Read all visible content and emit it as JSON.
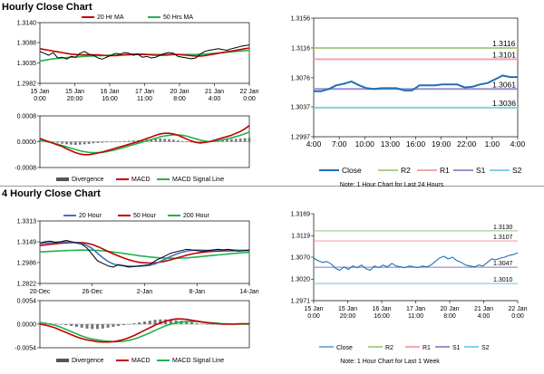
{
  "sections": {
    "hourly_title": "Hourly Close Chart",
    "four_hourly_title": "4 Hourly Close Chart"
  },
  "colors": {
    "close": "#000000",
    "ma_red": "#c00000",
    "ma_green": "#22b14c",
    "ma_blue": "#4472c4",
    "macd_black": "#1f1f1f",
    "lvl_close": "#1f6fb5",
    "lvl_r2": "#a8d08d",
    "lvl_r1": "#f4a6a6",
    "lvl_s1": "#9e8fcc",
    "lvl_s2": "#7fd3e6"
  },
  "chart_data": [
    {
      "id": "hourly-price",
      "type": "line",
      "title": "",
      "legend": "top",
      "x_ticks": [
        "15 Jan\n0:00",
        "15 Jan\n20:00",
        "16 Jan\n16:00",
        "17 Jan\n11:00",
        "20 Jan\n8:00",
        "21 Jan\n4:00",
        "22 Jan\n0:00"
      ],
      "ylim": [
        1.2982,
        1.314
      ],
      "y_ticks": [
        "1.3140",
        "1.3088",
        "1.3035",
        "1.2982"
      ],
      "series": [
        {
          "name": "",
          "role": "close",
          "values": [
            1.3065,
            1.306,
            1.3055,
            1.3062,
            1.3048,
            1.305,
            1.3045,
            1.3052,
            1.305,
            1.306,
            1.3065,
            1.3058,
            1.3055,
            1.3048,
            1.3045,
            1.305,
            1.3055,
            1.306,
            1.3058,
            1.3062,
            1.306,
            1.3055,
            1.3058,
            1.305,
            1.3052,
            1.3048,
            1.305,
            1.3055,
            1.306,
            1.3062,
            1.306,
            1.3052,
            1.305,
            1.3048,
            1.3046,
            1.3048,
            1.3058,
            1.3065,
            1.3068,
            1.307,
            1.3072,
            1.307,
            1.3068,
            1.3072,
            1.3075,
            1.3078,
            1.308,
            1.3082
          ]
        },
        {
          "name": "20 Hr MA",
          "values": [
            1.3072,
            1.307,
            1.3068,
            1.3066,
            1.3064,
            1.3062,
            1.306,
            1.3058,
            1.3057,
            1.3056,
            1.3056,
            1.3056,
            1.3056,
            1.3056,
            1.3055,
            1.3054,
            1.3054,
            1.3054,
            1.3055,
            1.3056,
            1.3057,
            1.3058,
            1.3058,
            1.3058,
            1.3057,
            1.3056,
            1.3055,
            1.3055,
            1.3055,
            1.3056,
            1.3057,
            1.3057,
            1.3056,
            1.3055,
            1.3054,
            1.3053,
            1.3053,
            1.3054,
            1.3056,
            1.3058,
            1.306,
            1.3062,
            1.3064,
            1.3066,
            1.3068,
            1.307,
            1.3072,
            1.3074
          ]
        },
        {
          "name": "50 Hrs MA",
          "values": [
            1.304,
            1.3042,
            1.3044,
            1.3046,
            1.3047,
            1.3048,
            1.3049,
            1.305,
            1.305,
            1.3051,
            1.3052,
            1.3053,
            1.3053,
            1.3054,
            1.3054,
            1.3055,
            1.3055,
            1.3055,
            1.3056,
            1.3056,
            1.3056,
            1.3057,
            1.3057,
            1.3057,
            1.3057,
            1.3057,
            1.3057,
            1.3057,
            1.3057,
            1.3057,
            1.3057,
            1.3057,
            1.3057,
            1.3057,
            1.3057,
            1.3057,
            1.3058,
            1.3058,
            1.3059,
            1.306,
            1.3061,
            1.3062,
            1.3063,
            1.3064,
            1.3065,
            1.3066,
            1.3067,
            1.3068
          ]
        }
      ]
    },
    {
      "id": "hourly-macd",
      "type": "line",
      "title": "",
      "legend": "bottom",
      "ylim": [
        -0.0008,
        0.0008
      ],
      "y_ticks": [
        "0.0008",
        "0.0000",
        "-0.0008"
      ],
      "series": [
        {
          "name": "Divergence",
          "role": "histogram",
          "values": [
            5e-05,
            4e-05,
            2e-05,
            0.0,
            -3e-05,
            -6e-05,
            -8e-05,
            -9e-05,
            -0.0001,
            -9e-05,
            -8e-05,
            -7e-05,
            -5e-05,
            -4e-05,
            -3e-05,
            -2e-05,
            -1e-05,
            0.0,
            1e-05,
            2e-05,
            3e-05,
            4e-05,
            5e-05,
            6e-05,
            7e-05,
            8e-05,
            9e-05,
            0.0001,
            9e-05,
            8e-05,
            6e-05,
            4e-05,
            2e-05,
            0.0,
            -2e-05,
            -3e-05,
            -2e-05,
            0.0,
            2e-05,
            4e-05,
            5e-05,
            6e-05,
            7e-05,
            8e-05,
            9e-05,
            0.0001,
            0.00011,
            0.00012
          ]
        },
        {
          "name": "MACD",
          "values": [
            0.0001,
            5e-05,
            0.0,
            -5e-05,
            -0.0001,
            -0.00015,
            -0.00022,
            -0.00028,
            -0.00034,
            -0.00038,
            -0.0004,
            -0.0004,
            -0.00038,
            -0.00035,
            -0.00032,
            -0.00028,
            -0.00024,
            -0.0002,
            -0.00016,
            -0.00012,
            -8e-05,
            -4e-05,
            0.0,
            5e-05,
            0.0001,
            0.00015,
            0.0002,
            0.00024,
            0.00026,
            0.00026,
            0.00024,
            0.0002,
            0.00014,
            8e-05,
            2e-05,
            -2e-05,
            -4e-05,
            -2e-05,
            0.0,
            4e-05,
            8e-05,
            0.00012,
            0.00016,
            0.0002,
            0.00026,
            0.00032,
            0.0004,
            0.0005
          ]
        },
        {
          "name": "MACD Signal Line",
          "values": [
            5e-05,
            2e-05,
            -1e-05,
            -4e-05,
            -8e-05,
            -0.00012,
            -0.00016,
            -0.0002,
            -0.00024,
            -0.00028,
            -0.00031,
            -0.00033,
            -0.00034,
            -0.00034,
            -0.00033,
            -0.00031,
            -0.00028,
            -0.00025,
            -0.00021,
            -0.00017,
            -0.00013,
            -9e-05,
            -5e-05,
            -1e-05,
            3e-05,
            7e-05,
            0.00011,
            0.00015,
            0.00018,
            0.0002,
            0.00021,
            0.00021,
            0.0002,
            0.00017,
            0.00013,
            9e-05,
            5e-05,
            2e-05,
            0.0,
            1e-05,
            3e-05,
            6e-05,
            9e-05,
            0.00012,
            0.00016,
            0.0002,
            0.00025,
            0.0003
          ]
        }
      ]
    },
    {
      "id": "hourly-24h",
      "type": "line",
      "title": "",
      "legend": "bottom",
      "note": "Note: 1 Hour Chart for Last 24 Hours",
      "x_ticks": [
        "4:00",
        "7:00",
        "10:00",
        "13:00",
        "16:00",
        "19:00",
        "22:00",
        "1:00",
        "4:00"
      ],
      "ylim": [
        1.2997,
        1.3156
      ],
      "y_ticks": [
        "1.3156",
        "1.3116",
        "1.3076",
        "1.3037",
        "1.2997"
      ],
      "levels": [
        {
          "name": "R2",
          "value": 1.3116,
          "label": "1.3116"
        },
        {
          "name": "R1",
          "value": 1.3101,
          "label": "1.3101"
        },
        {
          "name": "S1",
          "value": 1.3061,
          "label": "1.3061"
        },
        {
          "name": "S2",
          "value": 1.3036,
          "label": "1.3036"
        }
      ],
      "series": [
        {
          "name": "Close",
          "values": [
            1.3058,
            1.3058,
            1.3061,
            1.3066,
            1.3068,
            1.3071,
            1.3066,
            1.3062,
            1.3061,
            1.3062,
            1.3062,
            1.3062,
            1.3059,
            1.3059,
            1.3066,
            1.3066,
            1.3066,
            1.3067,
            1.3067,
            1.3067,
            1.3063,
            1.3064,
            1.3067,
            1.3069,
            1.3074,
            1.3079,
            1.3077,
            1.3077
          ]
        }
      ]
    },
    {
      "id": "four-hourly-price",
      "type": "line",
      "title": "",
      "legend": "top",
      "x_ticks": [
        "20-Dec",
        "26-Dec",
        "2-Jan",
        "8-Jan",
        "14-Jan"
      ],
      "ylim": [
        1.2822,
        1.3313
      ],
      "y_ticks": [
        "1.3313",
        "1.3149",
        "1.2986",
        "1.2822"
      ],
      "series": [
        {
          "name": "",
          "role": "close",
          "values": [
            1.314,
            1.315,
            1.3155,
            1.3145,
            1.315,
            1.316,
            1.315,
            1.314,
            1.313,
            1.31,
            1.305,
            1.3,
            1.298,
            1.296,
            1.295,
            1.297,
            1.296,
            1.295,
            1.2955,
            1.296,
            1.2965,
            1.297,
            1.3,
            1.302,
            1.304,
            1.306,
            1.307,
            1.308,
            1.309,
            1.3085,
            1.308,
            1.3075,
            1.308,
            1.3085,
            1.309,
            1.3085,
            1.309,
            1.308,
            1.3075,
            1.308,
            1.3085
          ]
        },
        {
          "name": "20 Hour",
          "values": [
            1.3135,
            1.314,
            1.3143,
            1.3145,
            1.3147,
            1.3148,
            1.3147,
            1.3143,
            1.3136,
            1.312,
            1.3095,
            1.306,
            1.3025,
            1.2995,
            1.2975,
            1.2966,
            1.2962,
            1.2958,
            1.2956,
            1.2957,
            1.296,
            1.2965,
            1.2975,
            1.2995,
            1.3015,
            1.3035,
            1.3052,
            1.3066,
            1.3076,
            1.3082,
            1.3084,
            1.3083,
            1.3082,
            1.3082,
            1.3084,
            1.3085,
            1.3086,
            1.3085,
            1.3083,
            1.3082,
            1.3082
          ]
        },
        {
          "name": "50 Hour",
          "values": [
            1.312,
            1.3125,
            1.313,
            1.3134,
            1.3138,
            1.3141,
            1.3143,
            1.3144,
            1.3143,
            1.3138,
            1.3128,
            1.3112,
            1.3094,
            1.3074,
            1.3055,
            1.3038,
            1.3022,
            1.3008,
            1.2996,
            1.2988,
            1.2984,
            1.2982,
            1.2984,
            1.299,
            1.2998,
            1.3008,
            1.302,
            1.3032,
            1.3043,
            1.3053,
            1.3061,
            1.3067,
            1.3071,
            1.3074,
            1.3076,
            1.3078,
            1.3079,
            1.308,
            1.308,
            1.308,
            1.308
          ]
        },
        {
          "name": "200 Hour",
          "values": [
            1.307,
            1.3072,
            1.3074,
            1.3076,
            1.3078,
            1.308,
            1.3082,
            1.3083,
            1.3084,
            1.3084,
            1.3083,
            1.3081,
            1.3078,
            1.3074,
            1.3069,
            1.3064,
            1.3058,
            1.3052,
            1.3046,
            1.304,
            1.3035,
            1.303,
            1.3026,
            1.3023,
            1.3021,
            1.302,
            1.302,
            1.3021,
            1.3023,
            1.3026,
            1.303,
            1.3034,
            1.3038,
            1.3042,
            1.3046,
            1.305,
            1.3054,
            1.3058,
            1.3061,
            1.3064,
            1.3066
          ]
        }
      ]
    },
    {
      "id": "four-hourly-macd",
      "type": "line",
      "title": "",
      "legend": "bottom",
      "ylim": [
        -0.0054,
        0.0054
      ],
      "y_ticks": [
        "0.0054",
        "0.0000",
        "-0.0054"
      ],
      "series": [
        {
          "name": "Divergence",
          "role": "histogram",
          "values": [
            0.0004,
            0.0003,
            0.0002,
            0.0001,
            0.0,
            -0.0002,
            -0.0004,
            -0.0006,
            -0.0008,
            -0.001,
            -0.0011,
            -0.0011,
            -0.001,
            -0.0008,
            -0.0006,
            -0.0004,
            -0.0002,
            0.0,
            0.0002,
            0.0004,
            0.0006,
            0.0008,
            0.001,
            0.0011,
            0.0011,
            0.001,
            0.0009,
            0.0008,
            0.0006,
            0.0004,
            0.0002,
            0.0001,
            0.0,
            -0.0001,
            -0.0001,
            0.0,
            0.0,
            0.0001,
            0.0001,
            0.0001,
            0.0001
          ]
        },
        {
          "name": "MACD",
          "values": [
            0.0,
            -0.0002,
            -0.0005,
            -0.0009,
            -0.0014,
            -0.0019,
            -0.0024,
            -0.0029,
            -0.0033,
            -0.0036,
            -0.0038,
            -0.004,
            -0.0041,
            -0.0041,
            -0.004,
            -0.0038,
            -0.0035,
            -0.0031,
            -0.0026,
            -0.002,
            -0.0014,
            -0.0008,
            -0.0002,
            0.0003,
            0.0007,
            0.001,
            0.0012,
            0.0012,
            0.0011,
            0.0009,
            0.0007,
            0.0005,
            0.0003,
            0.0002,
            0.0001,
            0.0,
            0.0,
            0.0,
            0.0001,
            0.0001,
            0.0001
          ]
        },
        {
          "name": "MACD Signal Line",
          "values": [
            0.0004,
            0.0002,
            0.0,
            -0.0003,
            -0.0007,
            -0.0012,
            -0.0017,
            -0.0022,
            -0.0027,
            -0.0031,
            -0.0034,
            -0.0036,
            -0.0038,
            -0.0039,
            -0.004,
            -0.004,
            -0.0039,
            -0.0037,
            -0.0034,
            -0.003,
            -0.0025,
            -0.002,
            -0.0014,
            -0.0009,
            -0.0004,
            0.0,
            0.0003,
            0.0005,
            0.0006,
            0.0006,
            0.0006,
            0.0005,
            0.0004,
            0.0003,
            0.0002,
            0.0001,
            0.0001,
            0.0,
            0.0,
            0.0,
            0.0
          ]
        }
      ]
    },
    {
      "id": "weekly",
      "type": "line",
      "title": "",
      "legend": "bottom",
      "note": "Note: 1 Hour Chart for Last 1 Week",
      "x_ticks": [
        "15 Jan\n0:00",
        "15 Jan\n20:00",
        "16 Jan\n16:00",
        "17 Jan\n11:00",
        "20 Jan\n8:00",
        "21 Jan\n4:00",
        "22 Jan\n0:00"
      ],
      "ylim": [
        1.2971,
        1.3169
      ],
      "y_ticks": [
        "1.3169",
        "1.3119",
        "1.3070",
        "1.3020",
        "1.2971"
      ],
      "levels": [
        {
          "name": "R2",
          "value": 1.313,
          "label": "1.3130"
        },
        {
          "name": "R1",
          "value": 1.3107,
          "label": "1.3107"
        },
        {
          "name": "S1",
          "value": 1.3047,
          "label": "1.3047"
        },
        {
          "name": "S2",
          "value": 1.301,
          "label": "1.3010"
        }
      ],
      "series": [
        {
          "name": "Close",
          "values": [
            1.3068,
            1.3062,
            1.3058,
            1.306,
            1.3055,
            1.3045,
            1.304,
            1.3048,
            1.3042,
            1.305,
            1.3046,
            1.3052,
            1.3044,
            1.304,
            1.305,
            1.3046,
            1.3052,
            1.3048,
            1.3056,
            1.305,
            1.3048,
            1.3046,
            1.305,
            1.3048,
            1.3046,
            1.305,
            1.3048,
            1.3052,
            1.306,
            1.3068,
            1.3072,
            1.3066,
            1.307,
            1.3062,
            1.3058,
            1.3052,
            1.305,
            1.3048,
            1.3052,
            1.305,
            1.3058,
            1.3066,
            1.3064,
            1.3068,
            1.307,
            1.3074,
            1.3076,
            1.308
          ]
        }
      ]
    }
  ]
}
